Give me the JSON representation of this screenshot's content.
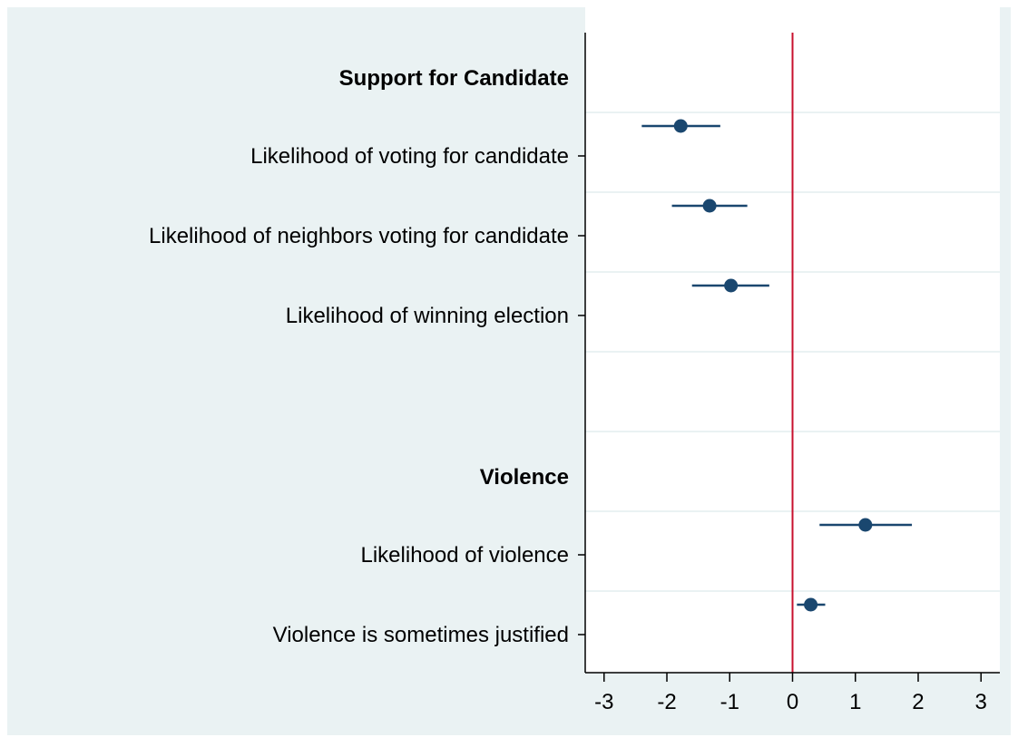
{
  "chart_data": {
    "type": "scatter",
    "subtype": "coefficient-plot",
    "title": "",
    "xlabel": "",
    "ylabel": "",
    "xlim": [
      -3.3,
      3.3
    ],
    "xticks": [
      -3,
      -2,
      -1,
      0,
      1,
      2,
      3
    ],
    "xtick_labels": [
      "-3",
      "-2",
      "-1",
      "0",
      "1",
      "2",
      "3"
    ],
    "reference_line": {
      "x": 0,
      "color": "#c8102e"
    },
    "groups": [
      {
        "header": "Support for Candidate",
        "items": [
          {
            "label": "Likelihood of voting for candidate",
            "estimate": -1.78,
            "ci_low": -2.4,
            "ci_high": -1.15
          },
          {
            "label": "Likelihood of neighbors voting for candidate",
            "estimate": -1.32,
            "ci_low": -1.92,
            "ci_high": -0.72
          },
          {
            "label": "Likelihood of winning election",
            "estimate": -0.98,
            "ci_low": -1.6,
            "ci_high": -0.37
          }
        ]
      },
      {
        "header": "Violence",
        "items": [
          {
            "label": "Likelihood of violence",
            "estimate": 1.16,
            "ci_low": 0.43,
            "ci_high": 1.9
          },
          {
            "label": "Violence is sometimes justified",
            "estimate": 0.29,
            "ci_low": 0.07,
            "ci_high": 0.52
          }
        ]
      }
    ],
    "grid": true,
    "legend": "none",
    "colors": {
      "outer_background": "#eaf2f3",
      "plot_background": "#ffffff",
      "gridline": "#eaf2f3",
      "marker": "#1a476f",
      "reference_line": "#c8102e",
      "axis": "#000000"
    }
  }
}
